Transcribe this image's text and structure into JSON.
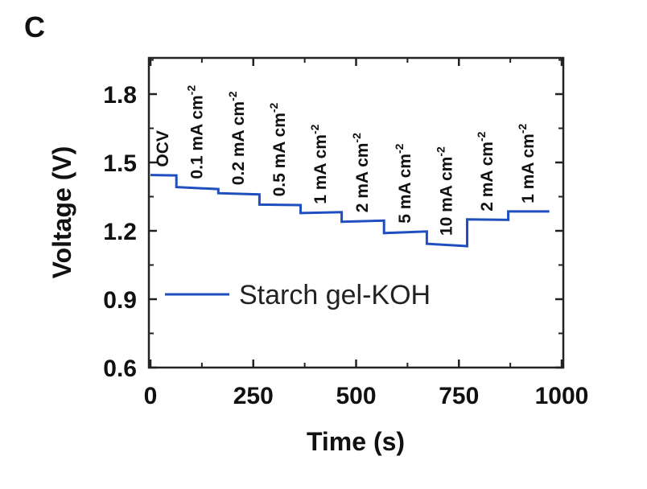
{
  "panel_label": "C",
  "chart_data": {
    "type": "line",
    "xlabel": "Time (s)",
    "ylabel": "Voltage (V)",
    "xlim": [
      0,
      1000
    ],
    "ylim": [
      0.6,
      2.0
    ],
    "xticks": [
      0,
      250,
      500,
      750,
      1000
    ],
    "yticks": [
      0.6,
      0.9,
      1.2,
      1.5,
      1.8
    ],
    "xtick_labels": [
      "0",
      "250",
      "500",
      "750",
      "1000"
    ],
    "ytick_labels": [
      "0.6",
      "0.9",
      "1.2",
      "1.5",
      "1.8"
    ],
    "legend": {
      "position": "center-left",
      "label": "Starch gel-KOH"
    },
    "series_color": "#1f4fbf",
    "steps": [
      {
        "label": "OCV",
        "t_start": 0,
        "t_end": 63,
        "v_start": 1.445,
        "v_end": 1.443
      },
      {
        "label": "0.1 mA cm",
        "sup": "-2",
        "t_start": 63,
        "t_end": 165,
        "v_start": 1.392,
        "v_end": 1.383
      },
      {
        "label": "0.2 mA cm",
        "sup": "-2",
        "t_start": 165,
        "t_end": 265,
        "v_start": 1.365,
        "v_end": 1.36
      },
      {
        "label": "0.5 mA cm",
        "sup": "-2",
        "t_start": 265,
        "t_end": 365,
        "v_start": 1.315,
        "v_end": 1.313
      },
      {
        "label": "1 mA cm",
        "sup": "-2",
        "t_start": 365,
        "t_end": 465,
        "v_start": 1.278,
        "v_end": 1.282
      },
      {
        "label": "2 mA cm",
        "sup": "-2",
        "t_start": 465,
        "t_end": 568,
        "v_start": 1.24,
        "v_end": 1.245
      },
      {
        "label": "5 mA cm",
        "sup": "-2",
        "t_start": 568,
        "t_end": 672,
        "v_start": 1.19,
        "v_end": 1.197
      },
      {
        "label": "10 mA cm",
        "sup": "-2",
        "t_start": 672,
        "t_end": 770,
        "v_start": 1.143,
        "v_end": 1.133
      },
      {
        "label": "2 mA cm",
        "sup": "-2",
        "t_start": 770,
        "t_end": 870,
        "v_start": 1.25,
        "v_end": 1.248
      },
      {
        "label": "1 mA cm",
        "sup": "-2",
        "t_start": 870,
        "t_end": 970,
        "v_start": 1.285,
        "v_end": 1.285
      }
    ]
  }
}
